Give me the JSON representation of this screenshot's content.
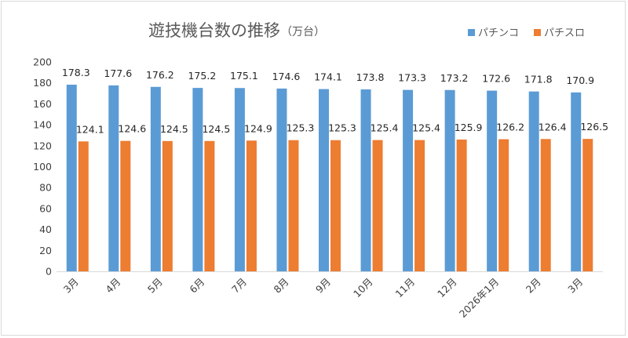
{
  "chart_data": {
    "type": "bar",
    "title": "遊技機台数の推移",
    "subtitle": "（万台）",
    "categories": [
      "3月",
      "4月",
      "5月",
      "6月",
      "7月",
      "8月",
      "9月",
      "10月",
      "11月",
      "12月",
      "2026年1月",
      "2月",
      "3月"
    ],
    "series": [
      {
        "name": "パチンコ",
        "color": "#5b9bd5",
        "values": [
          178.3,
          177.6,
          176.2,
          175.2,
          175.1,
          174.6,
          174.1,
          173.8,
          173.3,
          173.2,
          172.6,
          171.8,
          170.9
        ]
      },
      {
        "name": "パチスロ",
        "color": "#ed7d31",
        "values": [
          124.1,
          124.6,
          124.5,
          124.5,
          124.9,
          125.3,
          125.3,
          125.4,
          125.4,
          125.9,
          126.2,
          126.4,
          126.5
        ]
      }
    ],
    "ylim": [
      0,
      200
    ],
    "yticks": [
      0,
      20,
      40,
      60,
      80,
      100,
      120,
      140,
      160,
      180,
      200
    ],
    "grid": false,
    "legend_position": "top-right",
    "xlabel": "",
    "ylabel": ""
  }
}
